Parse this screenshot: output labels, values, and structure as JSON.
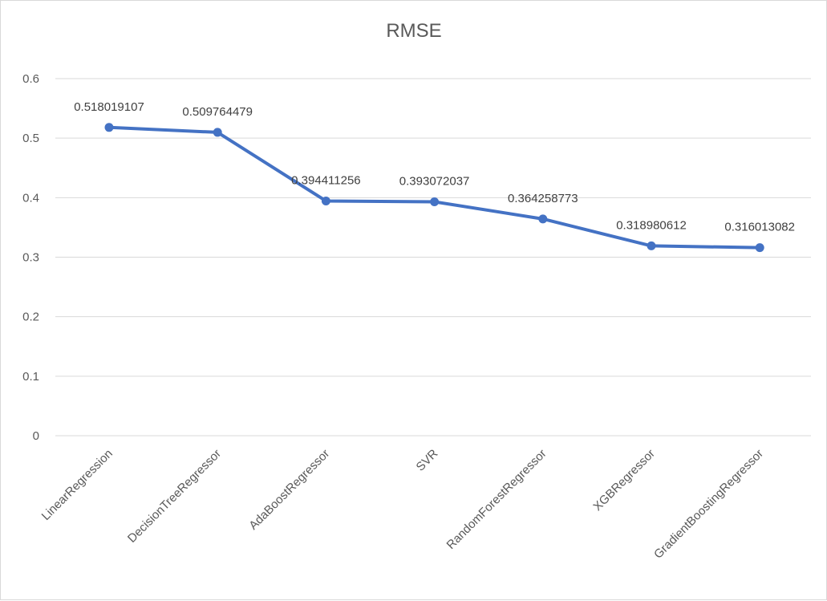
{
  "chart_data": {
    "type": "line",
    "title": "RMSE",
    "xlabel": "",
    "ylabel": "",
    "categories": [
      "LinearRegression",
      "DecisionTreeRegressor",
      "AdaBoostRegressor",
      "SVR",
      "RandomForestRegressor",
      "XGBRegressor",
      "GradientBoostingRegressor"
    ],
    "series": [
      {
        "values": [
          0.518019107,
          0.509764479,
          0.394411256,
          0.393072037,
          0.364258773,
          0.318980612,
          0.316013082
        ],
        "data_labels": [
          "0.518019107",
          "0.509764479",
          "0.394411256",
          "0.393072037",
          "0.364258773",
          "0.318980612",
          "0.316013082"
        ],
        "color": "#4472c4"
      }
    ],
    "ylim": [
      0,
      0.6
    ],
    "yticks": [
      0,
      0.1,
      0.2,
      0.3,
      0.4,
      0.5,
      0.6
    ],
    "ytick_labels": [
      "0",
      "0.1",
      "0.2",
      "0.3",
      "0.4",
      "0.5",
      "0.6"
    ],
    "grid": true,
    "legend": "none"
  }
}
